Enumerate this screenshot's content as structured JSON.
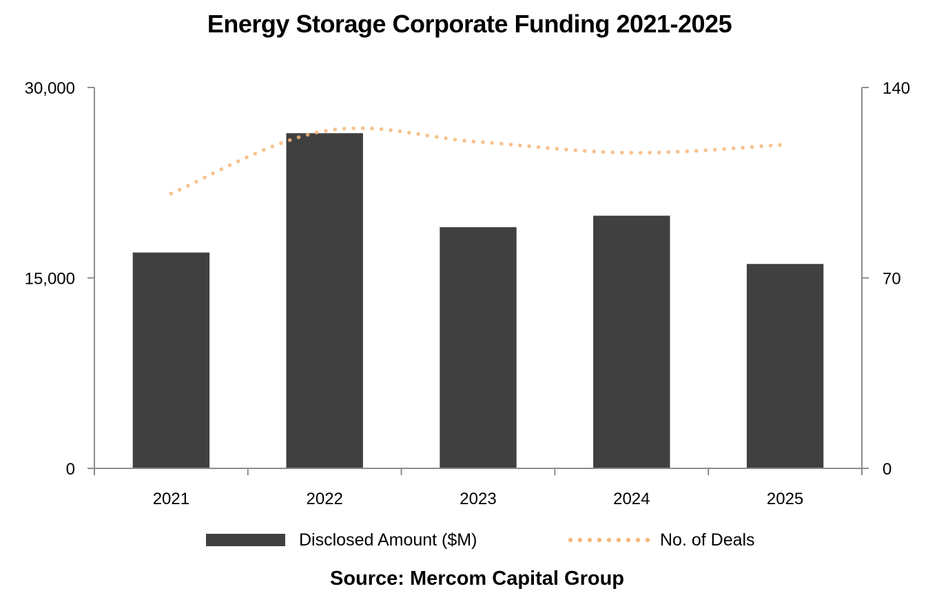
{
  "chart_data": {
    "type": "bar",
    "title": "Energy Storage Corporate Funding 2021-2025",
    "categories": [
      "2021",
      "2022",
      "2023",
      "2024",
      "2025"
    ],
    "series": [
      {
        "name": "Disclosed Amount ($M)",
        "type": "bar",
        "axis": "left",
        "color": "#404040",
        "values": [
          17000,
          26400,
          19000,
          19900,
          16100
        ]
      },
      {
        "name": "No. of Deals",
        "type": "line",
        "style": "dotted",
        "axis": "right",
        "color": "#F4B97A",
        "values": [
          101,
          124,
          120,
          116,
          119
        ]
      }
    ],
    "xlabel": "",
    "ylabel": "",
    "y_left": {
      "lim": [
        0,
        30000
      ],
      "ticks": [
        0,
        15000,
        30000
      ],
      "tick_labels": [
        "0",
        "15,000",
        "30,000"
      ]
    },
    "y_right": {
      "lim": [
        0,
        140
      ],
      "ticks": [
        0,
        70,
        140
      ],
      "tick_labels": [
        "0",
        "70",
        "140"
      ]
    },
    "grid": false,
    "legend_position": "bottom",
    "source": "Source: Mercom Capital Group"
  },
  "colors": {
    "bar": "#404040",
    "line": "#F4B97A",
    "axis": "#8C8C8C"
  }
}
